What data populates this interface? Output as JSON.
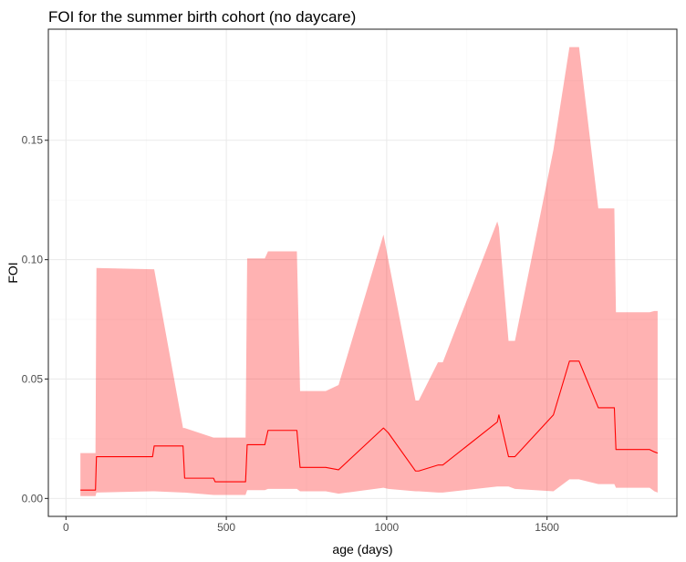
{
  "chart_data": {
    "type": "line",
    "title": "FOI for the summer birth cohort (no daycare)",
    "xlabel": "age (days)",
    "ylabel": "FOI",
    "xlim": [
      -55,
      1905
    ],
    "ylim": [
      -0.0075,
      0.1965
    ],
    "x_ticks": [
      0,
      500,
      1000,
      1500
    ],
    "x_tick_labels": [
      "0",
      "500",
      "1000",
      "1500"
    ],
    "y_ticks": [
      0.0,
      0.05,
      0.1,
      0.15
    ],
    "y_tick_labels": [
      "0.00",
      "0.05",
      "0.10",
      "0.15"
    ],
    "grid": true,
    "legend": "none",
    "colors": {
      "line": "#ff0000",
      "ribbon": "#ff0000",
      "ribbon_alpha": 0.3
    },
    "series": [
      {
        "x": [
          45,
          92,
          95,
          270,
          275,
          365,
          370,
          460,
          465,
          560,
          565,
          620,
          630,
          720,
          730,
          810,
          850,
          990,
          1005,
          1090,
          1100,
          1160,
          1175,
          1345,
          1350,
          1380,
          1400,
          1520,
          1570,
          1600,
          1660,
          1710,
          1715,
          1820,
          1835,
          1845
        ],
        "y": [
          0.0035,
          0.0035,
          0.0175,
          0.0175,
          0.022,
          0.022,
          0.0085,
          0.0085,
          0.007,
          0.007,
          0.0225,
          0.0225,
          0.0285,
          0.0285,
          0.013,
          0.013,
          0.012,
          0.0295,
          0.0275,
          0.0115,
          0.0115,
          0.014,
          0.014,
          0.032,
          0.035,
          0.0175,
          0.0175,
          0.035,
          0.0575,
          0.0575,
          0.038,
          0.038,
          0.0205,
          0.0205,
          0.0195,
          0.019
        ],
        "ymin": [
          0.001,
          0.001,
          0.0025,
          0.003,
          0.003,
          0.0025,
          0.0025,
          0.0015,
          0.0015,
          0.0015,
          0.0035,
          0.0035,
          0.004,
          0.004,
          0.003,
          0.003,
          0.002,
          0.0045,
          0.004,
          0.003,
          0.003,
          0.0025,
          0.0025,
          0.005,
          0.005,
          0.005,
          0.004,
          0.003,
          0.008,
          0.008,
          0.006,
          0.006,
          0.0045,
          0.0045,
          0.003,
          0.0025
        ],
        "ymax": [
          0.019,
          0.019,
          0.0965,
          0.096,
          0.096,
          0.0295,
          0.0295,
          0.0255,
          0.0255,
          0.0255,
          0.1005,
          0.1005,
          0.1035,
          0.1035,
          0.045,
          0.045,
          0.0475,
          0.1105,
          0.1,
          0.041,
          0.041,
          0.057,
          0.057,
          0.116,
          0.1135,
          0.066,
          0.066,
          0.146,
          0.189,
          0.189,
          0.1215,
          0.1215,
          0.078,
          0.078,
          0.0785,
          0.0785
        ]
      }
    ]
  }
}
